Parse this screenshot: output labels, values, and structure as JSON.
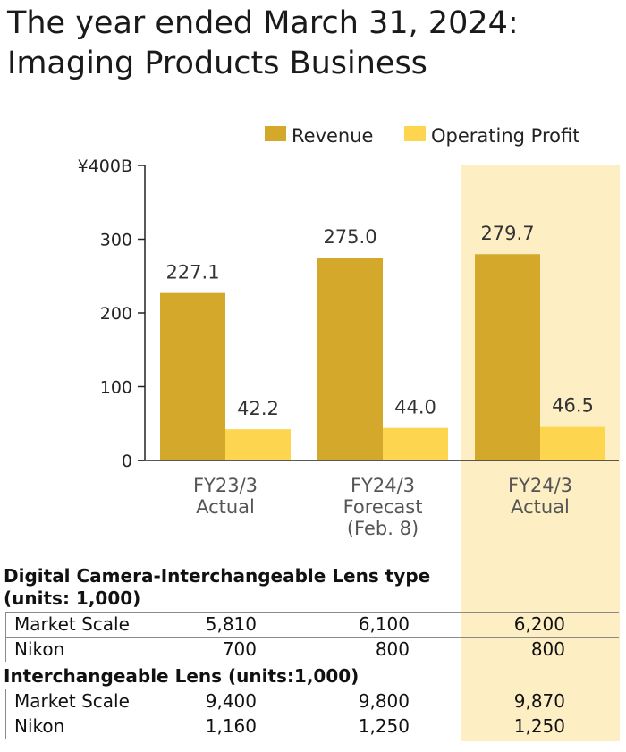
{
  "title": {
    "line1": "The year ended March 31, 2024:",
    "line2": "Imaging Products Business"
  },
  "chart_data": {
    "type": "bar",
    "categories": [
      [
        "FY23/3",
        "Actual"
      ],
      [
        "FY24/3",
        "Forecast",
        "(Feb. 8)"
      ],
      [
        "FY24/3",
        "Actual"
      ]
    ],
    "series": [
      {
        "name": "Revenue",
        "values": [
          227.1,
          275.0,
          279.7
        ],
        "labels": [
          "227.1",
          "275.0",
          "279.7"
        ],
        "color": "#d4a92b"
      },
      {
        "name": "Operating Profit",
        "values": [
          42.2,
          44.0,
          46.5
        ],
        "labels": [
          "42.2",
          "44.0",
          "46.5"
        ],
        "color": "#fdd54f"
      }
    ],
    "y_ticks": [
      "¥400B",
      "300",
      "200",
      "100",
      "0"
    ],
    "y_tick_values": [
      400,
      300,
      200,
      100,
      0
    ],
    "ylim": [
      0,
      400
    ],
    "highlight_category": 2,
    "highlight_color": "#fdefc3",
    "legend_position": "top-right",
    "grid": false
  },
  "table": {
    "sections": [
      {
        "heading": [
          "Digital Camera-Interchangeable Lens type",
          "(units: 1,000)"
        ],
        "rows": [
          {
            "label": "Market Scale",
            "values": [
              "5,810",
              "6,100",
              "6,200"
            ]
          },
          {
            "label": "Nikon",
            "values": [
              "700",
              "800",
              "800"
            ]
          }
        ]
      },
      {
        "heading": [
          "Interchangeable Lens (units:1,000)"
        ],
        "rows": [
          {
            "label": "Market Scale",
            "values": [
              "9,400",
              "9,800",
              "9,870"
            ]
          },
          {
            "label": "Nikon",
            "values": [
              "1,160",
              "1,250",
              "1,250"
            ]
          }
        ]
      }
    ]
  }
}
